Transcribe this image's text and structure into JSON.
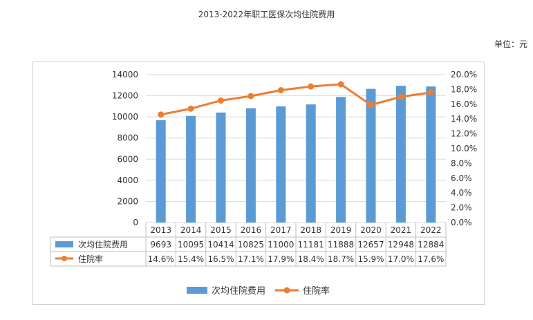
{
  "page": {
    "title": "2013-2022年职工医保次均住院费用",
    "unit": "单位：元"
  },
  "colors": {
    "bar": "#5b9bd5",
    "line": "#ed7d31",
    "grid": "#d9d9d9",
    "table_border": "#bfbfbf"
  },
  "chart_data": {
    "type": "bar",
    "categories": [
      "2013",
      "2014",
      "2015",
      "2016",
      "2017",
      "2018",
      "2019",
      "2020",
      "2021",
      "2022"
    ],
    "series": [
      {
        "name": "次均住院费用",
        "type": "bar",
        "axis": "left",
        "values": [
          9693,
          10095,
          10414,
          10825,
          11000,
          11181,
          11888,
          12657,
          12948,
          12884
        ],
        "labels": [
          "9693",
          "10095",
          "10414",
          "10825",
          "11000",
          "11181",
          "11888",
          "12657",
          "12948",
          "12884"
        ]
      },
      {
        "name": "住院率",
        "type": "line",
        "axis": "right",
        "values": [
          14.6,
          15.4,
          16.5,
          17.1,
          17.9,
          18.4,
          18.7,
          15.9,
          17.0,
          17.6
        ],
        "labels": [
          "14.6%",
          "15.4%",
          "16.5%",
          "17.1%",
          "17.9%",
          "18.4%",
          "18.7%",
          "15.9%",
          "17.0%",
          "17.6%"
        ]
      }
    ],
    "ylim": [
      0,
      14000
    ],
    "yticks": [
      "0",
      "2000",
      "4000",
      "6000",
      "8000",
      "10000",
      "12000",
      "14000"
    ],
    "y2lim": [
      0,
      20
    ],
    "y2ticks": [
      "0.0%",
      "2.0%",
      "4.0%",
      "6.0%",
      "8.0%",
      "10.0%",
      "12.0%",
      "14.0%",
      "16.0%",
      "18.0%",
      "20.0%"
    ],
    "grid": true,
    "data_table": true,
    "legend_position": "bottom"
  }
}
